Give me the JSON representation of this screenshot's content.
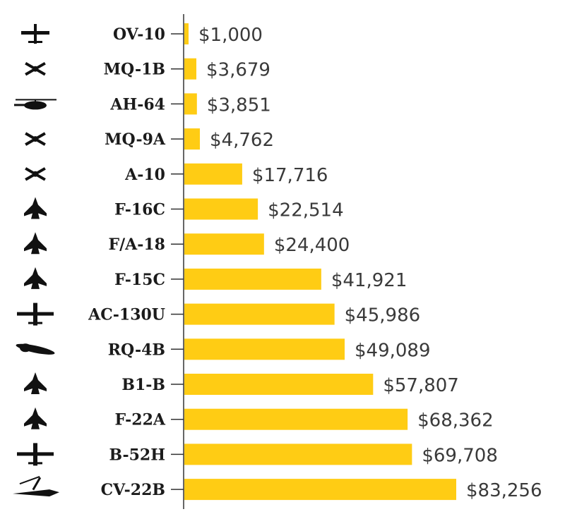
{
  "chart_data": {
    "type": "bar",
    "orientation": "horizontal",
    "title": "",
    "xlabel": "",
    "ylabel": "",
    "value_prefix": "$",
    "xlim": [
      0,
      83256
    ],
    "grid": false,
    "legend": "none",
    "bar_color": "#ffcc14",
    "categories": [
      "OV-10",
      "MQ-1B",
      "AH-64",
      "MQ-9A",
      "A-10",
      "F-16C",
      "F/A-18",
      "F-15C",
      "AC-130U",
      "RQ-4B",
      "B1-B",
      "F-22A",
      "B-52H",
      "CV-22B"
    ],
    "values": [
      1000,
      3679,
      3851,
      4762,
      17716,
      22514,
      24400,
      41921,
      45986,
      49089,
      57807,
      68362,
      69708,
      83256
    ],
    "value_labels": [
      "$1,000",
      "$3,679",
      "$3,851",
      "$4,762",
      "$17,716",
      "$22,514",
      "$24,400",
      "$41,921",
      "$45,986",
      "$49,089",
      "$57,807",
      "$68,362",
      "$69,708",
      "$83,256"
    ],
    "icons": [
      "ov10-aircraft-icon",
      "mq1b-drone-icon",
      "ah64-helicopter-icon",
      "mq9a-drone-icon",
      "a10-aircraft-icon",
      "f16c-jet-icon",
      "fa18-jet-icon",
      "f15c-jet-icon",
      "ac130u-aircraft-icon",
      "rq4b-drone-icon",
      "b1b-bomber-icon",
      "f22a-jet-icon",
      "b52h-bomber-icon",
      "cv22b-tiltrotor-icon"
    ]
  }
}
